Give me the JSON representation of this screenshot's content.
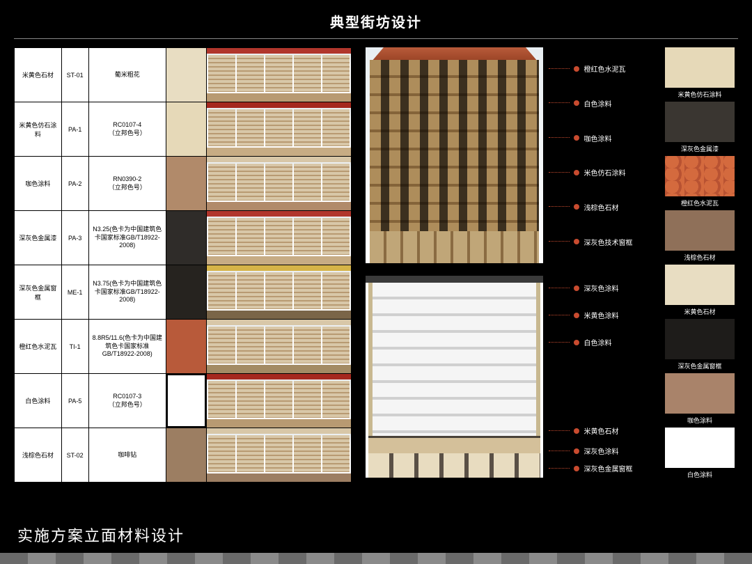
{
  "title": "典型街坊设计",
  "bottom_title": "实施方案立面材料设计",
  "colors": {
    "callout_red": "#c84b2f",
    "bg": "#000000",
    "text": "#ffffff"
  },
  "material_table": [
    {
      "name": "米黄色石材",
      "code": "ST-01",
      "spec": "葡米粗花",
      "swatch": "#e8ddc2",
      "thumb_accent": "#b1362c",
      "thumb_base": "#b89a72"
    },
    {
      "name": "米黄色仿石涂料",
      "code": "PA-1",
      "spec": "RC0107-4\n（立邦色号）",
      "swatch": "#e6d9b8",
      "thumb_accent": "#a5281e",
      "thumb_base": "#c7ac84"
    },
    {
      "name": "咖色涂料",
      "code": "PA-2",
      "spec": "RN0390-2\n（立邦色号）",
      "swatch": "#b18a6a",
      "thumb_accent": "#d8c7a8",
      "thumb_base": "#b18a6a"
    },
    {
      "name": "深灰色金属漆",
      "code": "PA-3",
      "spec": "N3.25(色卡为中国建筑色卡国家标准GB/T18922-2008)",
      "swatch": "#2f2c29",
      "thumb_accent": "#b1362c",
      "thumb_base": "#c7ac84"
    },
    {
      "name": "深灰色金属窗框",
      "code": "ME-1",
      "spec": "N3.75(色卡为中国建筑色卡国家标准GB/T18922-2008)",
      "swatch": "#26231f",
      "thumb_accent": "#d6b448",
      "thumb_base": "#7a6548"
    },
    {
      "name": "橙红色水泥瓦",
      "code": "TI-1",
      "spec": "8.8R5/11.6(色卡为中国建筑色卡国家标准GB/T18922-2008)",
      "swatch": "#b85a3a",
      "thumb_accent": "#d8c7a8",
      "thumb_base": "#a38b64"
    },
    {
      "name": "白色涂料",
      "code": "PA-5",
      "spec": "RC0107-3\n（立邦色号）",
      "swatch": "#ffffff",
      "swatch_border": "#000000",
      "thumb_accent": "#a5281e",
      "thumb_base": "#b89a72"
    },
    {
      "name": "浅棕色石材",
      "code": "ST-02",
      "spec": "咖啡钻",
      "swatch": "#9c7e62",
      "thumb_accent": "#d8c7a8",
      "thumb_base": "#9c7e62"
    }
  ],
  "building_a": {
    "roof_color": "#b85a3a",
    "wall_light": "#d6c3a4",
    "wall_dark": "#9d8258",
    "frame": "#4a4238",
    "callouts": [
      "橙红色水泥瓦",
      "白色涂料",
      "咖色涂料",
      "米色仿石涂料",
      "浅棕色石材",
      "深灰色技术窗框"
    ]
  },
  "building_b": {
    "roof_color": "#3a3a3a",
    "wall_light": "#f5f5f5",
    "wall_band": "#d0d0d0",
    "accent": "#c8b890",
    "callouts_top": [
      "深灰色涂料",
      "米黄色涂料",
      "白色涂料"
    ],
    "callouts_bottom": [
      "米黄色石材",
      "深灰色涂料",
      "深灰色金属窗框"
    ]
  },
  "right_swatches": [
    {
      "label": "米黄色仿石涂料",
      "color": "#e6d9b8"
    },
    {
      "label": "深灰色金属漆",
      "color": "#3a3631"
    },
    {
      "label": "橙红色水泥瓦",
      "color": "#c25a36",
      "tile": true
    },
    {
      "label": "浅棕色石材",
      "color": "#8f7059"
    },
    {
      "label": "米黄色石材",
      "color": "#e8ddc2"
    },
    {
      "label": "深灰色金属窗框",
      "color": "#1e1c1a"
    },
    {
      "label": "咖色涂料",
      "color": "#a9836a"
    },
    {
      "label": "白色涂料",
      "color": "#ffffff"
    }
  ]
}
